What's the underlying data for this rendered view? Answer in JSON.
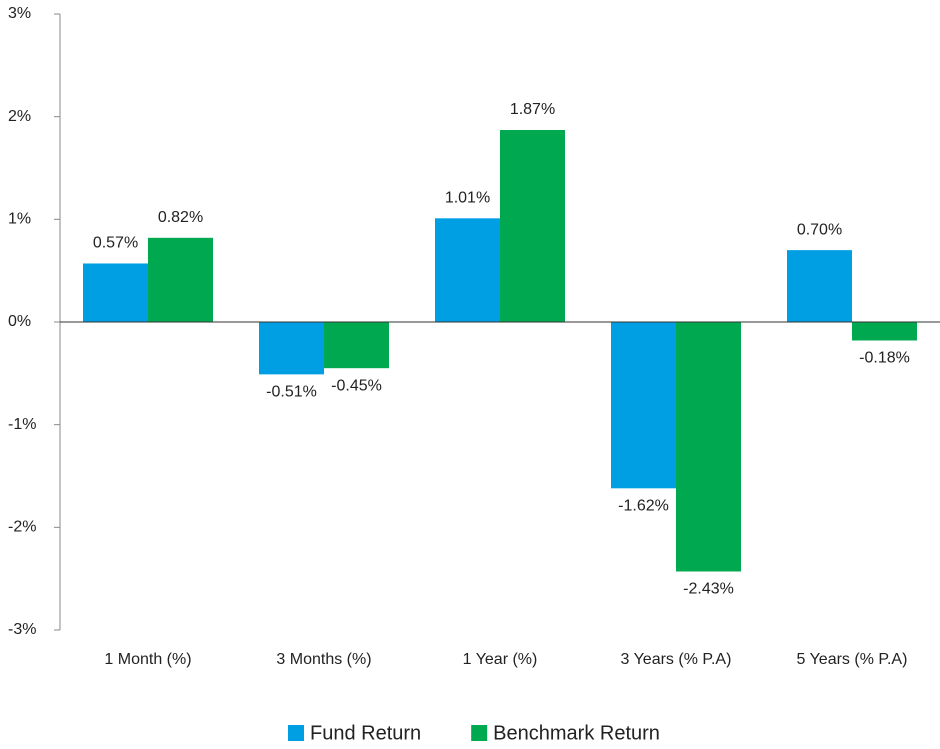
{
  "chart_data": {
    "type": "bar",
    "categories": [
      "1 Month (%)",
      "3 Months (%)",
      "1 Year (%)",
      "3 Years (% P.A)",
      "5 Years (% P.A)"
    ],
    "series": [
      {
        "name": "Fund Return",
        "color": "#009fe3",
        "values": [
          0.57,
          -0.51,
          1.01,
          -1.62,
          0.7
        ],
        "value_labels": [
          "0.57%",
          "-0.51%",
          "1.01%",
          "-1.62%",
          "0.70%"
        ]
      },
      {
        "name": "Benchmark Return",
        "color": "#00a94f",
        "values": [
          0.82,
          -0.45,
          1.87,
          -2.43,
          -0.18
        ],
        "value_labels": [
          "0.82%",
          "-0.45%",
          "1.87%",
          "-2.43%",
          "-0.18%"
        ]
      }
    ],
    "ylim": [
      -3,
      3
    ],
    "yticks": [
      {
        "value": -3,
        "label": "-3%"
      },
      {
        "value": -2,
        "label": "-2%"
      },
      {
        "value": -1,
        "label": "-1%"
      },
      {
        "value": 0,
        "label": "0%"
      },
      {
        "value": 1,
        "label": "1%"
      },
      {
        "value": 2,
        "label": "2%"
      },
      {
        "value": 3,
        "label": "3%"
      }
    ],
    "legend": "bottom"
  }
}
